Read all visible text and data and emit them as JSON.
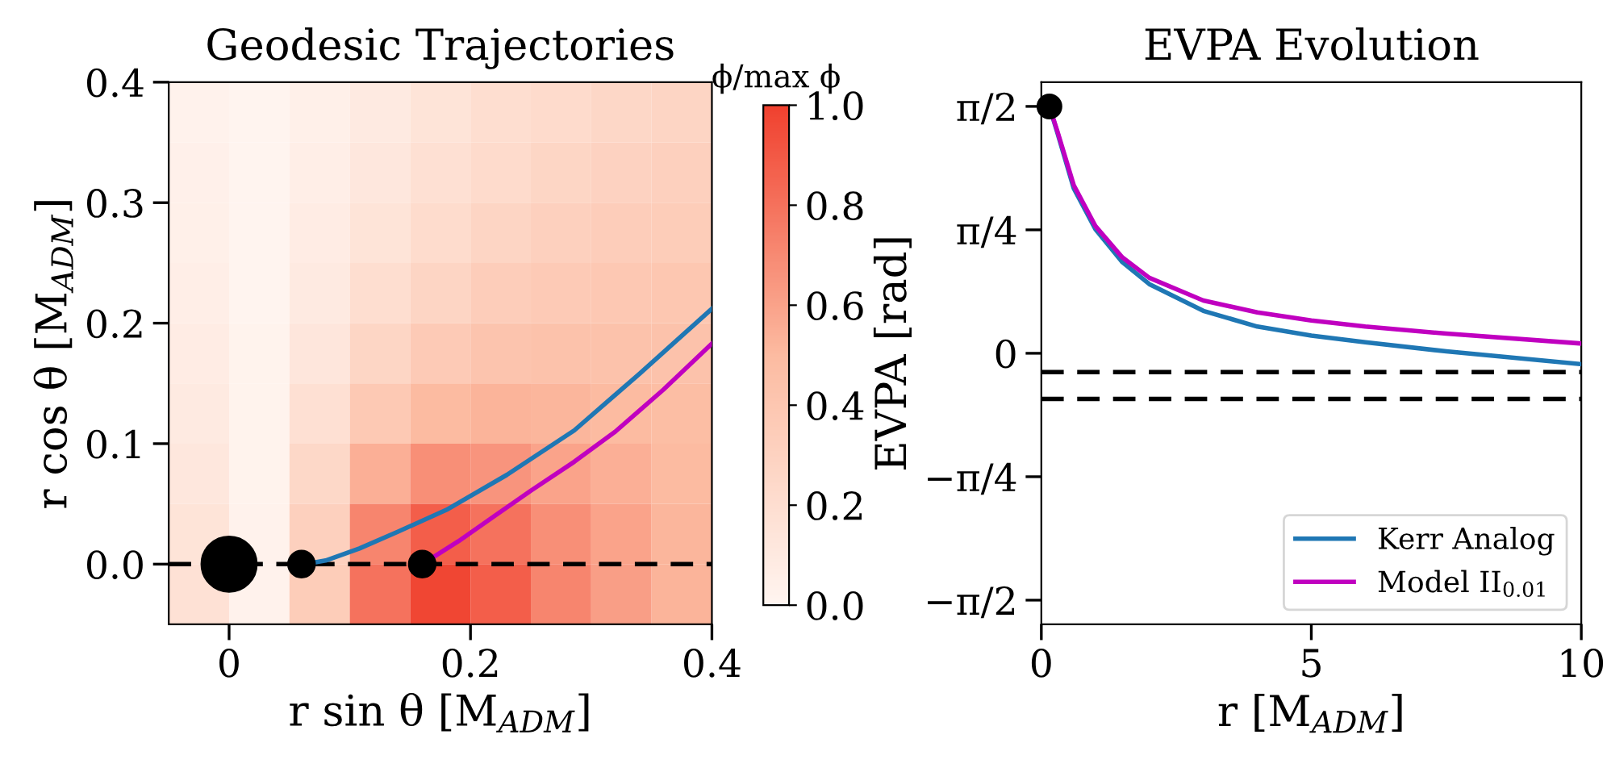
{
  "chart_data": [
    {
      "type": "heatmap",
      "title": "Geodesic Trajectories",
      "xlabel": "r sin θ [M$_{ADM}$]",
      "ylabel": "r cos θ [M$_{ADM}$]",
      "clabel": "ϕ/max ϕ",
      "x": [
        -0.025,
        0.025,
        0.075,
        0.125,
        0.175,
        0.225,
        0.275,
        0.325,
        0.375
      ],
      "y": [
        0.375,
        0.325,
        0.275,
        0.225,
        0.175,
        0.125,
        0.075,
        0.025,
        -0.025
      ],
      "cells": [
        [
          0.03,
          0.01,
          0.05,
          0.1,
          0.15,
          0.2,
          0.23,
          0.26,
          0.28
        ],
        [
          0.04,
          0.01,
          0.06,
          0.12,
          0.18,
          0.23,
          0.27,
          0.3,
          0.32
        ],
        [
          0.05,
          0.01,
          0.08,
          0.15,
          0.22,
          0.28,
          0.32,
          0.34,
          0.35
        ],
        [
          0.06,
          0.01,
          0.1,
          0.2,
          0.28,
          0.34,
          0.37,
          0.39,
          0.4
        ],
        [
          0.08,
          0.02,
          0.13,
          0.27,
          0.37,
          0.42,
          0.44,
          0.44,
          0.44
        ],
        [
          0.1,
          0.02,
          0.18,
          0.38,
          0.5,
          0.53,
          0.52,
          0.5,
          0.48
        ],
        [
          0.12,
          0.02,
          0.25,
          0.55,
          0.68,
          0.66,
          0.6,
          0.55,
          0.5
        ],
        [
          0.15,
          0.03,
          0.32,
          0.72,
          0.88,
          0.8,
          0.68,
          0.6,
          0.52
        ],
        [
          0.17,
          0.03,
          0.35,
          0.8,
          0.98,
          0.88,
          0.72,
          0.62,
          0.53
        ]
      ],
      "colors": [
        "#fff5f0",
        "#fcbba1",
        "#f0412f"
      ],
      "clim": [
        0,
        1
      ],
      "cticks": [
        {
          "value": 0,
          "label": "0.0"
        },
        {
          "value": 0.2,
          "label": "0.2"
        },
        {
          "value": 0.4,
          "label": "0.4"
        },
        {
          "value": 0.6,
          "label": "0.6"
        },
        {
          "value": 0.8,
          "label": "0.8"
        },
        {
          "value": 1,
          "label": "1.0"
        }
      ],
      "xlim": [
        -0.05,
        0.4
      ],
      "ylim": [
        -0.05,
        0.4
      ],
      "xticks": [
        0,
        0.2,
        0.4
      ],
      "yticks": [
        {
          "value": 0,
          "label": "0.0"
        },
        {
          "value": 0.1,
          "label": "0.1"
        },
        {
          "value": 0.2,
          "label": "0.2"
        },
        {
          "value": 0.3,
          "label": "0.3"
        },
        {
          "value": 0.4,
          "label": "0.4"
        }
      ],
      "ref_lines": [
        {
          "axis": "y",
          "value": 0,
          "color": "#000000",
          "line_style": "dashed"
        }
      ],
      "series": [
        {
          "type": "line",
          "color": "#1f77b4",
          "x": [
            0.063,
            0.08,
            0.108,
            0.14,
            0.18,
            0.23,
            0.286,
            0.34,
            0.4
          ],
          "values": [
            0,
            0.003,
            0.013,
            0.027,
            0.045,
            0.074,
            0.111,
            0.158,
            0.212
          ]
        },
        {
          "type": "line",
          "color": "#c000c0",
          "x": [
            0.16,
            0.19,
            0.22,
            0.25,
            0.286,
            0.32,
            0.36,
            0.4
          ],
          "values": [
            0,
            0.019,
            0.04,
            0.061,
            0.085,
            0.11,
            0.145,
            0.183
          ]
        },
        {
          "type": "bubble",
          "color": "#000000",
          "x": [
            0,
            0.06,
            0.16
          ],
          "values": [
            0,
            0,
            0
          ],
          "sizes": [
            1,
            0.23,
            0.23
          ]
        }
      ],
      "grid": false,
      "legend": false
    },
    {
      "type": "line",
      "title": "EVPA Evolution",
      "xlabel": "r [M$_{ADM}$]",
      "ylabel": "EVPA [rad]",
      "xlim": [
        0,
        10
      ],
      "ylim": [
        -1.725,
        1.725
      ],
      "xticks": [
        0,
        5,
        10
      ],
      "yticks": [
        {
          "value": -1.5708,
          "label": "−π/2"
        },
        {
          "value": -0.7854,
          "label": "−π/4"
        },
        0,
        {
          "value": 0.7854,
          "label": "π/4"
        },
        {
          "value": 1.5708,
          "label": "π/2"
        }
      ],
      "ref_lines": [
        {
          "axis": "y",
          "value": -0.12,
          "color": "#000000",
          "line_style": "dashed"
        },
        {
          "axis": "y",
          "value": -0.29,
          "color": "#000000",
          "line_style": "dashed"
        }
      ],
      "series": [
        {
          "name": "Kerr Analog",
          "color": "#1f77b4",
          "x": [
            0.15,
            0.3,
            0.6,
            1.0,
            1.5,
            2.0,
            3.0,
            4.0,
            5.0,
            6.0,
            7.5,
            10
          ],
          "values": [
            1.57,
            1.4,
            1.05,
            0.79,
            0.58,
            0.44,
            0.27,
            0.17,
            0.113,
            0.07,
            0.012,
            -0.069
          ]
        },
        {
          "name": "Model II$_{0.01}$",
          "color": "#c000c0",
          "x": [
            0.15,
            0.3,
            0.6,
            1.0,
            1.5,
            2.0,
            3.0,
            4.0,
            5.0,
            6.0,
            7.5,
            10
          ],
          "values": [
            1.57,
            1.41,
            1.07,
            0.81,
            0.61,
            0.48,
            0.336,
            0.26,
            0.209,
            0.17,
            0.125,
            0.062
          ]
        },
        {
          "type": "scatter",
          "color": "#000000",
          "x": [
            0.15
          ],
          "values": [
            1.57
          ],
          "marker": "circle"
        }
      ],
      "grid": false,
      "legend": "bottom right"
    }
  ]
}
